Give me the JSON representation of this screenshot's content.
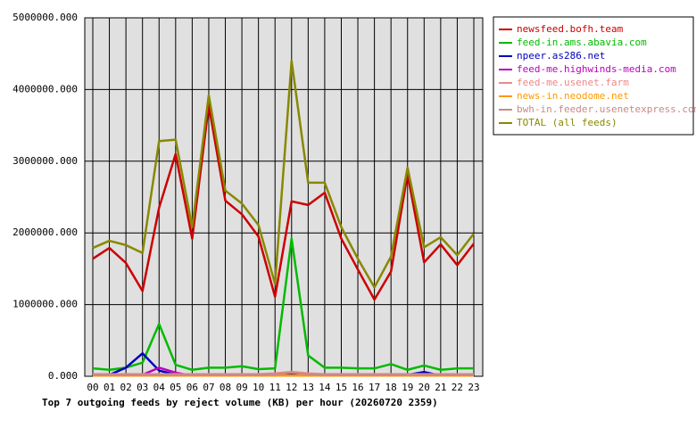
{
  "chart_data": {
    "type": "line",
    "title": "Top 7 outgoing feeds by reject volume (KB) per hour (20260720 2359)",
    "categories": [
      "00",
      "01",
      "02",
      "03",
      "04",
      "05",
      "06",
      "07",
      "08",
      "09",
      "10",
      "11",
      "12",
      "13",
      "14",
      "15",
      "16",
      "17",
      "18",
      "19",
      "20",
      "21",
      "22",
      "23"
    ],
    "ylim": [
      0,
      5000000
    ],
    "yticks": [
      {
        "value": 0,
        "label": "0.000"
      },
      {
        "value": 1000000,
        "label": "1000000.000"
      },
      {
        "value": 2000000,
        "label": "2000000.000"
      },
      {
        "value": 3000000,
        "label": "3000000.000"
      },
      {
        "value": 4000000,
        "label": "4000000.000"
      },
      {
        "value": 5000000,
        "label": "5000000.000"
      }
    ],
    "grid": true,
    "series": [
      {
        "name": "newsfeed.bofh.team",
        "color": "#cc0000",
        "values": [
          1640000,
          1790000,
          1580000,
          1190000,
          2350000,
          3100000,
          1920000,
          3780000,
          2450000,
          2260000,
          1950000,
          1110000,
          2440000,
          2390000,
          2560000,
          1920000,
          1490000,
          1070000,
          1460000,
          2820000,
          1590000,
          1840000,
          1550000,
          1850000
        ]
      },
      {
        "name": "feed-in.ams.abavia.com",
        "color": "#00bb00",
        "values": [
          110000,
          90000,
          120000,
          190000,
          730000,
          160000,
          90000,
          120000,
          120000,
          140000,
          100000,
          110000,
          1920000,
          290000,
          120000,
          120000,
          110000,
          110000,
          170000,
          90000,
          150000,
          90000,
          110000,
          110000
        ]
      },
      {
        "name": "npeer.as286.net",
        "color": "#0000bb",
        "values": [
          20000,
          20000,
          120000,
          320000,
          80000,
          20000,
          10000,
          10000,
          10000,
          20000,
          10000,
          10000,
          20000,
          10000,
          10000,
          10000,
          10000,
          10000,
          10000,
          20000,
          60000,
          10000,
          10000,
          10000
        ]
      },
      {
        "name": "feed-me.highwinds-media.com",
        "color": "#bb00bb",
        "values": [
          10000,
          10000,
          10000,
          20000,
          120000,
          50000,
          10000,
          10000,
          10000,
          10000,
          10000,
          10000,
          10000,
          10000,
          10000,
          10000,
          10000,
          10000,
          10000,
          10000,
          10000,
          10000,
          10000,
          10000
        ]
      },
      {
        "name": "feed-me.usenet.farm",
        "color": "#ee8888",
        "values": [
          30000,
          30000,
          30000,
          30000,
          30000,
          30000,
          30000,
          30000,
          30000,
          30000,
          30000,
          40000,
          60000,
          40000,
          30000,
          30000,
          30000,
          30000,
          30000,
          30000,
          30000,
          30000,
          30000,
          30000
        ]
      },
      {
        "name": "news-in.neodome.net",
        "color": "#ff9900",
        "values": [
          10000,
          10000,
          10000,
          10000,
          10000,
          10000,
          10000,
          10000,
          10000,
          10000,
          10000,
          10000,
          10000,
          10000,
          10000,
          10000,
          10000,
          10000,
          10000,
          10000,
          10000,
          10000,
          10000,
          10000
        ]
      },
      {
        "name": "bwh-in.feeder.usenetexpress.com",
        "color": "#cc8888",
        "values": [
          20000,
          20000,
          20000,
          20000,
          20000,
          20000,
          20000,
          20000,
          20000,
          20000,
          20000,
          30000,
          50000,
          30000,
          20000,
          20000,
          20000,
          20000,
          20000,
          20000,
          20000,
          20000,
          20000,
          20000
        ]
      },
      {
        "name": "TOTAL (all feeds)",
        "color": "#888800",
        "values": [
          1790000,
          1890000,
          1830000,
          1720000,
          3280000,
          3300000,
          2080000,
          3920000,
          2590000,
          2410000,
          2110000,
          1290000,
          4400000,
          2700000,
          2700000,
          2080000,
          1640000,
          1240000,
          1670000,
          2910000,
          1800000,
          1940000,
          1690000,
          1990000
        ]
      }
    ]
  }
}
